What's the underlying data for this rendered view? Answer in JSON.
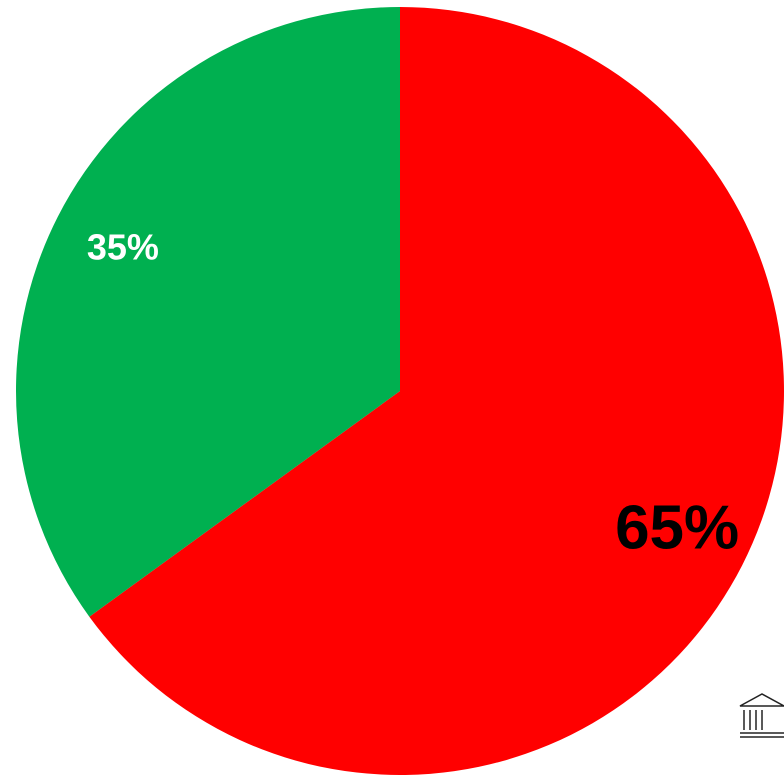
{
  "chart_data": {
    "type": "pie",
    "categories": [
      null,
      null
    ],
    "values": [
      65,
      35
    ],
    "value_labels": [
      "65%",
      "35%"
    ],
    "colors": [
      "#ff0000",
      "#00b050"
    ]
  }
}
